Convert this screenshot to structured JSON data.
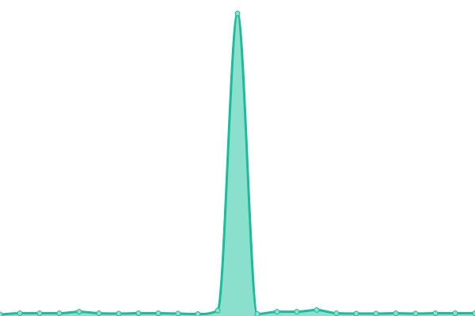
{
  "chart_data": {
    "type": "area",
    "title": "",
    "xlabel": "",
    "ylabel": "",
    "x": [
      0,
      1,
      2,
      3,
      4,
      5,
      6,
      7,
      8,
      9,
      10,
      11,
      12,
      13,
      14,
      15,
      16,
      17,
      18,
      19,
      20,
      21,
      22,
      23,
      24
    ],
    "series": [
      {
        "values": [
          0.5,
          0.9,
          0.9,
          0.9,
          1.4,
          0.9,
          0.8,
          0.9,
          0.9,
          0.8,
          0.65,
          1.8,
          100,
          0.65,
          1.4,
          1.4,
          2.0,
          0.9,
          0.8,
          0.8,
          0.9,
          0.8,
          0.9,
          0.9,
          0.9
        ]
      }
    ],
    "ylim": [
      0,
      100
    ],
    "grid": false,
    "axes_visible": false,
    "legend": "none",
    "colors": {
      "line": "#1abc9c",
      "fill": "#8ae0cc",
      "marker_fill": "#8ae0cc"
    }
  }
}
